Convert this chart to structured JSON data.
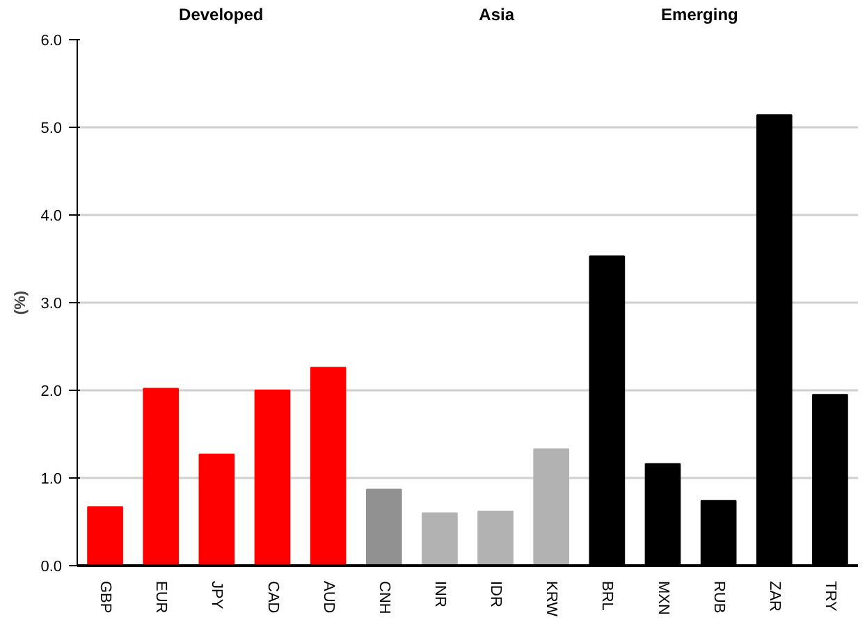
{
  "chart_data": {
    "type": "bar",
    "ylabel": "(%)",
    "categories": [
      "GBP",
      "EUR",
      "JPY",
      "CAD",
      "AUD",
      "CNH",
      "INR",
      "IDR",
      "KRW",
      "BRL",
      "MXN",
      "RUB",
      "ZAR",
      "TRY"
    ],
    "values": [
      0.67,
      2.02,
      1.27,
      2.0,
      2.26,
      0.87,
      0.6,
      0.62,
      1.33,
      3.53,
      1.16,
      0.74,
      5.14,
      1.95
    ],
    "colors": [
      "#ff0000",
      "#ff0000",
      "#ff0000",
      "#ff0000",
      "#ff0000",
      "#919191",
      "#b2b2b2",
      "#b2b2b2",
      "#b2b2b2",
      "#000000",
      "#000000",
      "#000000",
      "#000000",
      "#000000"
    ],
    "ylim": [
      0,
      6
    ],
    "yticks": [
      {
        "value": 0,
        "label": "0.0"
      },
      {
        "value": 1,
        "label": "1.0"
      },
      {
        "value": 2,
        "label": "2.0"
      },
      {
        "value": 3,
        "label": "3.0"
      },
      {
        "value": 4,
        "label": "4.0"
      },
      {
        "value": 5,
        "label": "5.0"
      },
      {
        "value": 6,
        "label": "6.0"
      }
    ],
    "grid": "y",
    "annotations": [
      "Developed",
      "Asia",
      "Emerging"
    ]
  }
}
